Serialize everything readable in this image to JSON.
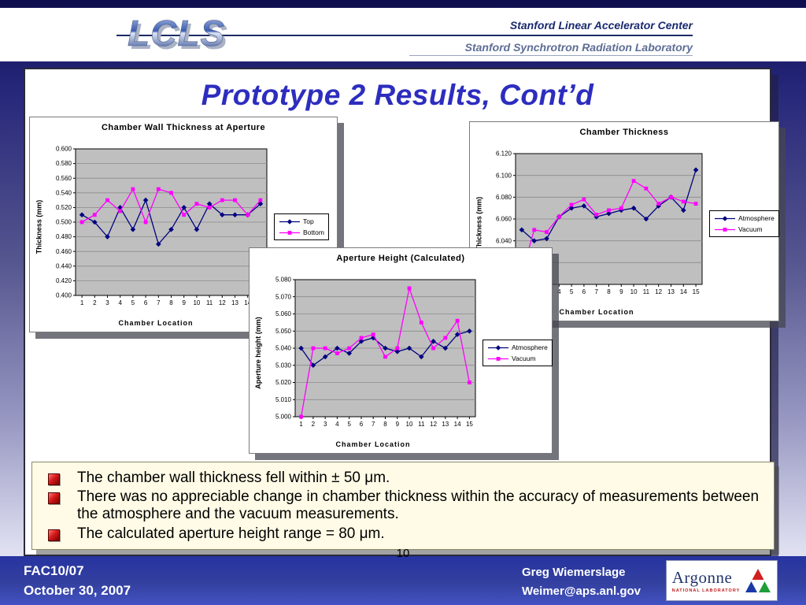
{
  "header": {
    "logo": "LCLS",
    "line1": "Stanford Linear Accelerator Center",
    "line2": "Stanford Synchrotron Radiation Laboratory"
  },
  "slide": {
    "title": "Prototype 2 Results, Cont’d",
    "bullets": [
      "The chamber wall thickness fell within ± 50 μm.",
      "There was no appreciable change in chamber thickness within the accuracy of measurements between the atmosphere and the vacuum measurements.",
      "The calculated aperture height range = 80 μm."
    ],
    "page_number": "10"
  },
  "footer": {
    "left_line1": "FAC10/07",
    "left_line2": "October 30, 2007",
    "right_line1": "Greg Wiemerslage",
    "right_line2": "Weimer@aps.anl.gov",
    "logo_text": "Argonne",
    "logo_subtext": "NATIONAL LABORATORY"
  },
  "colors": {
    "title_blue": "#2d2dbf",
    "footer_blue": "#2f3ca8",
    "series_blue": "#000080",
    "series_magenta": "#ff00ff",
    "plot_gray": "#bfbfbf",
    "bullet_red": "#c01010"
  },
  "chart_data": [
    {
      "type": "line",
      "title": "Chamber Wall Thickness at Aperture",
      "xlabel": "Chamber Location",
      "ylabel": "Thickness (mm)",
      "ylim": [
        0.4,
        0.6
      ],
      "ystep": 0.02,
      "decimals": 3,
      "grid": true,
      "legend_position": "right",
      "categories": [
        1,
        2,
        3,
        4,
        5,
        6,
        7,
        8,
        9,
        10,
        11,
        12,
        13,
        14,
        15
      ],
      "series": [
        {
          "name": "Top",
          "color": "#000080",
          "marker": "diamond",
          "values": [
            0.51,
            0.5,
            0.48,
            0.52,
            0.49,
            0.53,
            0.47,
            0.49,
            0.52,
            0.49,
            0.525,
            0.51,
            0.51,
            0.51,
            0.525
          ]
        },
        {
          "name": "Bottom",
          "color": "#ff00ff",
          "marker": "square",
          "values": [
            0.5,
            0.51,
            0.53,
            0.515,
            0.545,
            0.5,
            0.545,
            0.54,
            0.51,
            0.525,
            0.52,
            0.53,
            0.53,
            0.51,
            0.53
          ]
        }
      ]
    },
    {
      "type": "line",
      "title": "Chamber Thickness",
      "xlabel": "Chamber Location",
      "ylabel": "Thickness (mm)",
      "ylim": [
        6.0,
        6.12
      ],
      "ystep": 0.02,
      "decimals": 3,
      "grid": true,
      "legend_position": "right",
      "categories": [
        1,
        2,
        3,
        4,
        5,
        6,
        7,
        8,
        9,
        10,
        11,
        12,
        13,
        14,
        15
      ],
      "series": [
        {
          "name": "Atmosphere",
          "color": "#000080",
          "marker": "diamond",
          "values": [
            6.05,
            6.04,
            6.042,
            6.062,
            6.07,
            6.072,
            6.062,
            6.065,
            6.068,
            6.07,
            6.06,
            6.072,
            6.08,
            6.068,
            6.105
          ]
        },
        {
          "name": "Vacuum",
          "color": "#ff00ff",
          "marker": "square",
          "values": [
            6.01,
            6.05,
            6.048,
            6.062,
            6.073,
            6.078,
            6.064,
            6.068,
            6.07,
            6.095,
            6.088,
            6.074,
            6.08,
            6.076,
            6.074
          ]
        }
      ]
    },
    {
      "type": "line",
      "title": "Aperture Height (Calculated)",
      "xlabel": "Chamber Location",
      "ylabel": "Aperture height (mm)",
      "ylim": [
        5.0,
        5.08
      ],
      "ystep": 0.01,
      "decimals": 3,
      "grid": true,
      "legend_position": "right",
      "categories": [
        1,
        2,
        3,
        4,
        5,
        6,
        7,
        8,
        9,
        10,
        11,
        12,
        13,
        14,
        15
      ],
      "series": [
        {
          "name": "Atmosphere",
          "color": "#000080",
          "marker": "diamond",
          "values": [
            5.04,
            5.03,
            5.035,
            5.04,
            5.037,
            5.044,
            5.046,
            5.04,
            5.038,
            5.04,
            5.035,
            5.044,
            5.04,
            5.048,
            5.05
          ]
        },
        {
          "name": "Vacuum",
          "color": "#ff00ff",
          "marker": "square",
          "values": [
            5.0,
            5.04,
            5.04,
            5.037,
            5.04,
            5.046,
            5.048,
            5.035,
            5.04,
            5.075,
            5.055,
            5.04,
            5.046,
            5.056,
            5.02
          ]
        }
      ]
    }
  ]
}
